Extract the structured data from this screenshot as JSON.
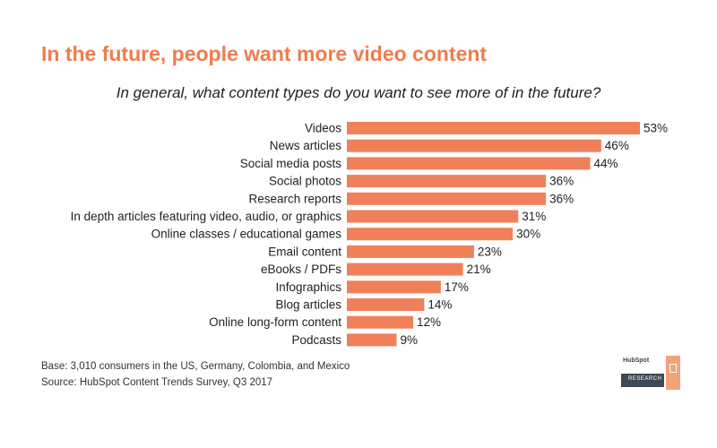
{
  "title": "In the future, people want more video content",
  "subtitle": "In general, what content types do you want to see more of in the future?",
  "chart_data": {
    "type": "bar",
    "orientation": "horizontal",
    "categories": [
      "Videos",
      "News articles",
      "Social media posts",
      "Social photos",
      "Research reports",
      "In depth articles featuring video, audio, or graphics",
      "Online classes / educational games",
      "Email content",
      "eBooks / PDFs",
      "Infographics",
      "Blog articles",
      "Online long-form content",
      "Podcasts"
    ],
    "values": [
      53,
      46,
      44,
      36,
      36,
      31,
      30,
      23,
      21,
      17,
      14,
      12,
      9
    ],
    "value_labels": [
      "53%",
      "46%",
      "44%",
      "36%",
      "36%",
      "31%",
      "30%",
      "23%",
      "21%",
      "17%",
      "14%",
      "12%",
      "9%"
    ],
    "xlim": [
      0,
      53
    ],
    "bar_color": "#f0805a",
    "grid": false,
    "legend": "none"
  },
  "footnotes": {
    "base": "Base: 3,010 consumers in the US, Germany, Colombia, and Mexico",
    "source": "Source: HubSpot Content Trends Survey, Q3 2017"
  },
  "logo": {
    "brand": "HubSpot",
    "tag": "RESEARCH"
  },
  "colors": {
    "title": "#f07c4c",
    "bar": "#f0805a",
    "logo_bar": "#3d4a56"
  }
}
